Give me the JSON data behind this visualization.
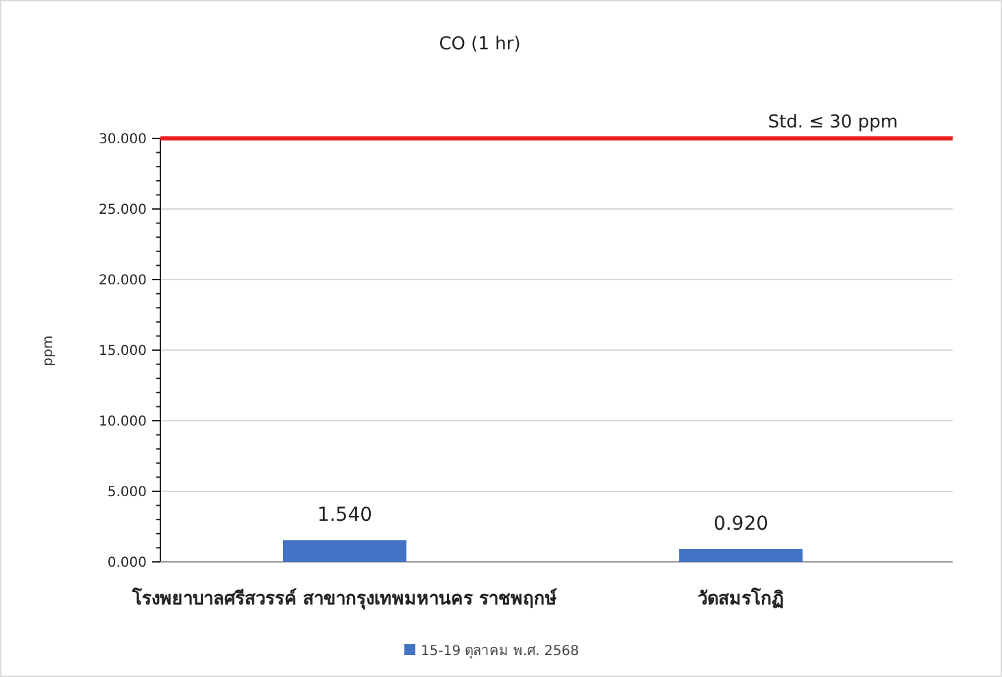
{
  "chart_data": {
    "type": "bar",
    "title": "CO (1 hr)",
    "ylabel": "ppm",
    "categories": [
      "โรงพยาบาลศรีสวรรค์ สาขากรุงเทพมหานคร ราชพฤกษ์",
      "วัดสมรโกฏิ"
    ],
    "series": [
      {
        "name": "15-19 ตุลาคม พ.ศ. 2568",
        "color": "#4472c4",
        "values": [
          1.54,
          0.92
        ],
        "value_labels": [
          "1.540",
          "0.920"
        ]
      }
    ],
    "ylim": [
      0,
      30
    ],
    "yticks": [
      {
        "value": 0,
        "label": "0.000"
      },
      {
        "value": 5,
        "label": "5.000"
      },
      {
        "value": 10,
        "label": "10.000"
      },
      {
        "value": 15,
        "label": "15.000"
      },
      {
        "value": 20,
        "label": "20.000"
      },
      {
        "value": 25,
        "label": "25.000"
      },
      {
        "value": 30,
        "label": "30.000"
      }
    ],
    "ref_lines": [
      {
        "axis": "y",
        "value": 30,
        "label": "Std. ≤ 30 ppm",
        "color": "#e81c1c"
      }
    ],
    "grid": "y",
    "legend": "bottom"
  }
}
